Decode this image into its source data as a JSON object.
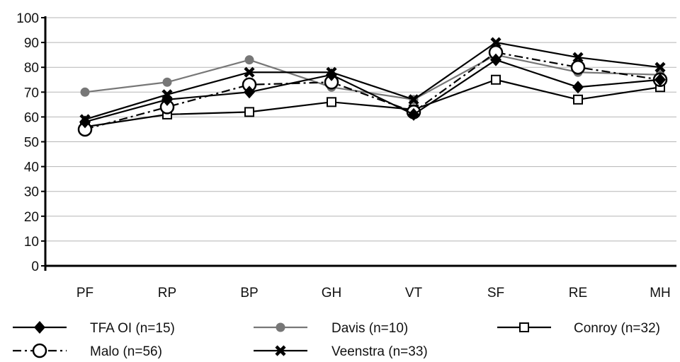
{
  "chart_data": {
    "type": "line",
    "categories": [
      "PF",
      "RP",
      "BP",
      "GH",
      "VT",
      "SF",
      "RE",
      "MH"
    ],
    "ylim": [
      0,
      100
    ],
    "yticks": [
      0,
      10,
      20,
      30,
      40,
      50,
      60,
      70,
      80,
      90,
      100
    ],
    "grid": true,
    "legend_position": "bottom",
    "series": [
      {
        "name": "TFA OI (n=15)",
        "values": [
          58,
          67,
          70,
          77,
          61,
          83,
          72,
          75
        ],
        "color": "#000000",
        "marker": "diamond",
        "dash": "solid"
      },
      {
        "name": "Davis (n=10)",
        "values": [
          70,
          74,
          83,
          72,
          67,
          85,
          78,
          77
        ],
        "color": "#777777",
        "marker": "circle-filled",
        "dash": "solid"
      },
      {
        "name": "Conroy (n=32)",
        "values": [
          56,
          61,
          62,
          66,
          63,
          75,
          67,
          72
        ],
        "color": "#000000",
        "marker": "square-open",
        "dash": "solid"
      },
      {
        "name": "Malo (n=56)",
        "values": [
          55,
          64,
          73,
          74,
          62,
          86,
          80,
          75
        ],
        "color": "#000000",
        "marker": "circle-open",
        "dash": "dashdot"
      },
      {
        "name": "Veenstra (n=33)",
        "values": [
          59,
          69,
          78,
          78,
          67,
          90,
          84,
          80
        ],
        "color": "#000000",
        "marker": "x",
        "dash": "solid"
      }
    ]
  }
}
